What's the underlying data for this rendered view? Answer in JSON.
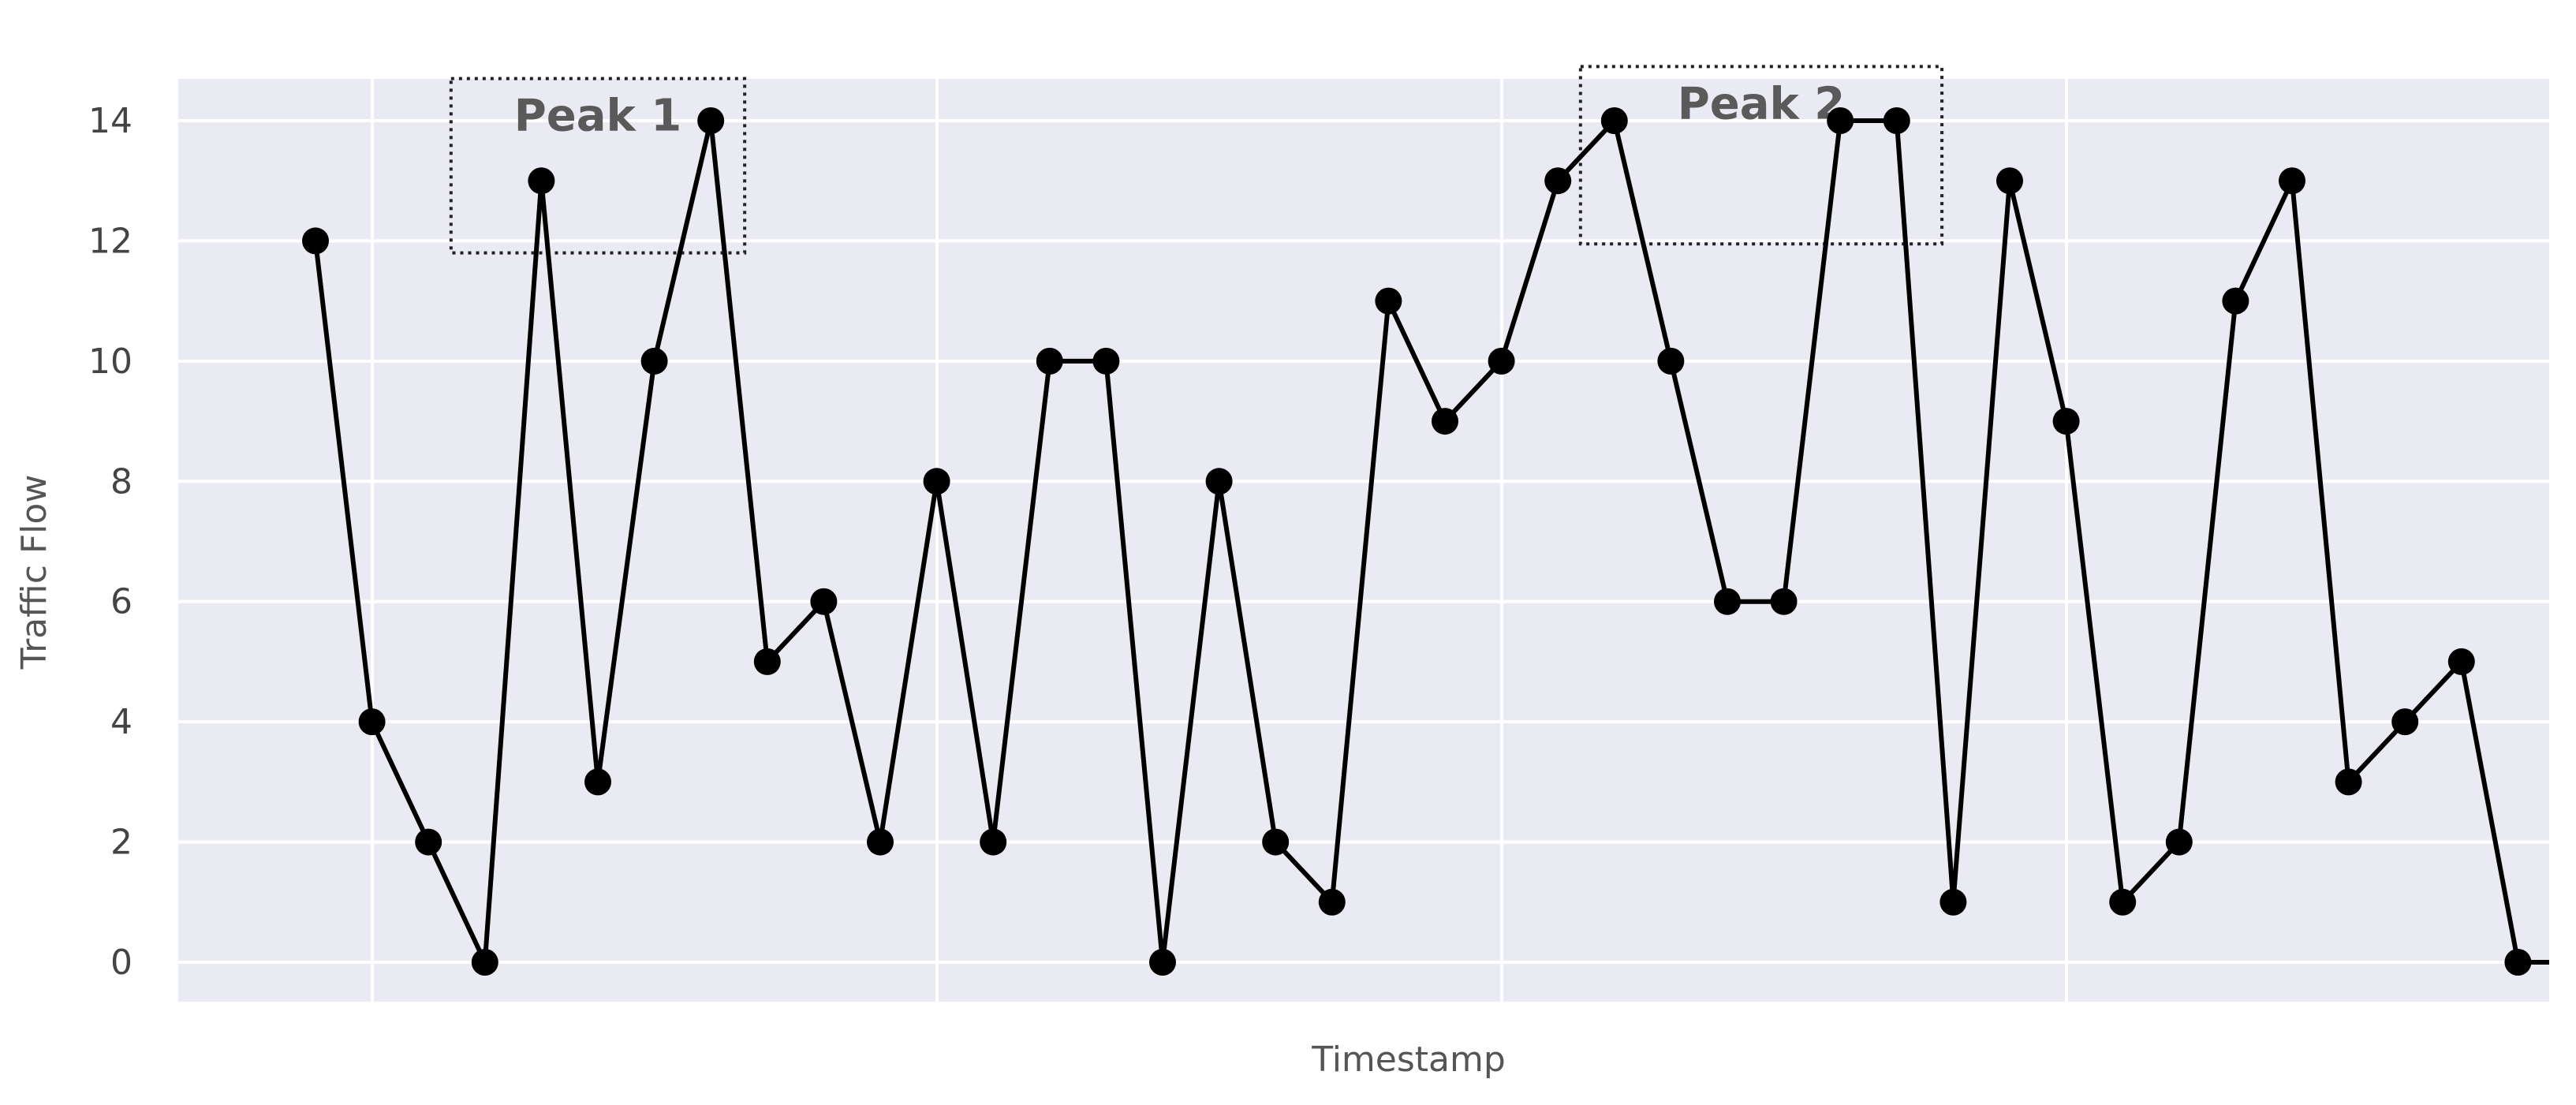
{
  "chart_data": {
    "type": "line",
    "title": "",
    "xlabel": "Timestamp",
    "ylabel": "Traffic Flow",
    "ylim": [
      -0.6,
      14.7
    ],
    "yticks": [
      0,
      2,
      4,
      6,
      8,
      10,
      12,
      14
    ],
    "xticks": [],
    "grid": true,
    "legend": "none",
    "colors": {
      "background": "#eaeaf2",
      "grid": "#ffffff",
      "line": "#000000",
      "marker": "#000000"
    },
    "series": [
      {
        "values": [
          12,
          4,
          2,
          0,
          13,
          3,
          10,
          14,
          5,
          6,
          2,
          8,
          2,
          10,
          10,
          0,
          8,
          2,
          1,
          11,
          9,
          10,
          13,
          14,
          10,
          6,
          6,
          14,
          14,
          1,
          13,
          9,
          1,
          2,
          11,
          13,
          3,
          4,
          5,
          0,
          0
        ]
      }
    ],
    "annotations": [
      {
        "text": "Peak 1",
        "x_start_index": 2.4,
        "x_end_index": 7.6,
        "y_top": 14.7,
        "y_bottom": 11.8
      },
      {
        "text": "Peak 2",
        "x_start_index": 22.4,
        "x_end_index": 28.8,
        "y_top": 14.9,
        "y_bottom": 11.95
      }
    ]
  }
}
